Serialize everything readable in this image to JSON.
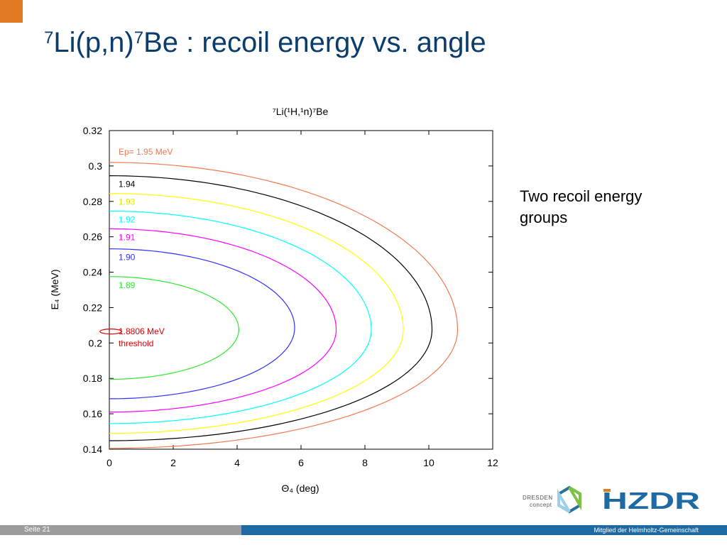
{
  "slide": {
    "title_sup1": "7",
    "title_main1": "Li(p,n)",
    "title_sup2": "7",
    "title_main2": "Be : recoil energy vs. angle",
    "note": "Two recoil energy groups",
    "page_label": "Seite 21",
    "member_text": "Mitglied der Helmholtz-Gemeinschaft",
    "logo_dresden": "DRESDEN",
    "logo_concept": "concept",
    "logo_hzdr": "HZDR"
  },
  "colors": {
    "accent_orange": "#e07b24",
    "title_blue": "#0a3d6b",
    "footer_blue": "#1d6aa5",
    "footer_grey": "#9c9c9c"
  },
  "chart_data": {
    "type": "line",
    "title": "⁷Li(¹H,¹n)⁷Be",
    "xlabel": "Θ₄ (deg)",
    "ylabel": "E₄ (MeV)",
    "xlim": [
      0,
      12
    ],
    "ylim": [
      0.14,
      0.32
    ],
    "xticks": [
      "0",
      "2",
      "4",
      "6",
      "8",
      "10",
      "12"
    ],
    "yticks": [
      "0.14",
      "0.16",
      "0.18",
      "0.2",
      "0.22",
      "0.24",
      "0.26",
      "0.28",
      "0.3",
      "0.32"
    ],
    "grid": false,
    "series": [
      {
        "name": "Ep= 1.95 MeV",
        "color": "#f07a50",
        "theta_max": 10.9,
        "e_center": 0.2075,
        "e_max": 0.302,
        "e_min": 0.1405,
        "label_lines": [
          "Ep= 1.95 MeV"
        ]
      },
      {
        "name": "1.94",
        "color": "#000000",
        "theta_max": 10.1,
        "e_center": 0.2075,
        "e_max": 0.2945,
        "e_min": 0.1448,
        "label_lines": [
          "1.94"
        ]
      },
      {
        "name": "1.93",
        "color": "#ffff00",
        "theta_max": 9.2,
        "e_center": 0.2075,
        "e_max": 0.2845,
        "e_min": 0.149,
        "label_lines": [
          "1.93"
        ]
      },
      {
        "name": "1.92",
        "color": "#00ffff",
        "theta_max": 8.2,
        "e_center": 0.2075,
        "e_max": 0.2745,
        "e_min": 0.1545,
        "label_lines": [
          "1.92"
        ]
      },
      {
        "name": "1.91",
        "color": "#ff00ff",
        "theta_max": 7.1,
        "e_center": 0.2075,
        "e_max": 0.2645,
        "e_min": 0.161,
        "label_lines": [
          "1.91"
        ]
      },
      {
        "name": "1.90",
        "color": "#3030ff",
        "theta_max": 5.8,
        "e_center": 0.2085,
        "e_max": 0.2532,
        "e_min": 0.1685,
        "label_lines": [
          "1.90"
        ]
      },
      {
        "name": "1.89",
        "color": "#30e830",
        "theta_max": 4.05,
        "e_center": 0.2075,
        "e_max": 0.2375,
        "e_min": 0.1795,
        "label_lines": [
          "1.89"
        ]
      },
      {
        "name": "1.8806 MeV threshold",
        "color": "#e00000",
        "theta_max": 0.25,
        "e_center": 0.2065,
        "e_max": 0.2075,
        "e_min": 0.2055,
        "label_lines": [
          "1.8806 MeV",
          "threshold"
        ]
      }
    ]
  }
}
